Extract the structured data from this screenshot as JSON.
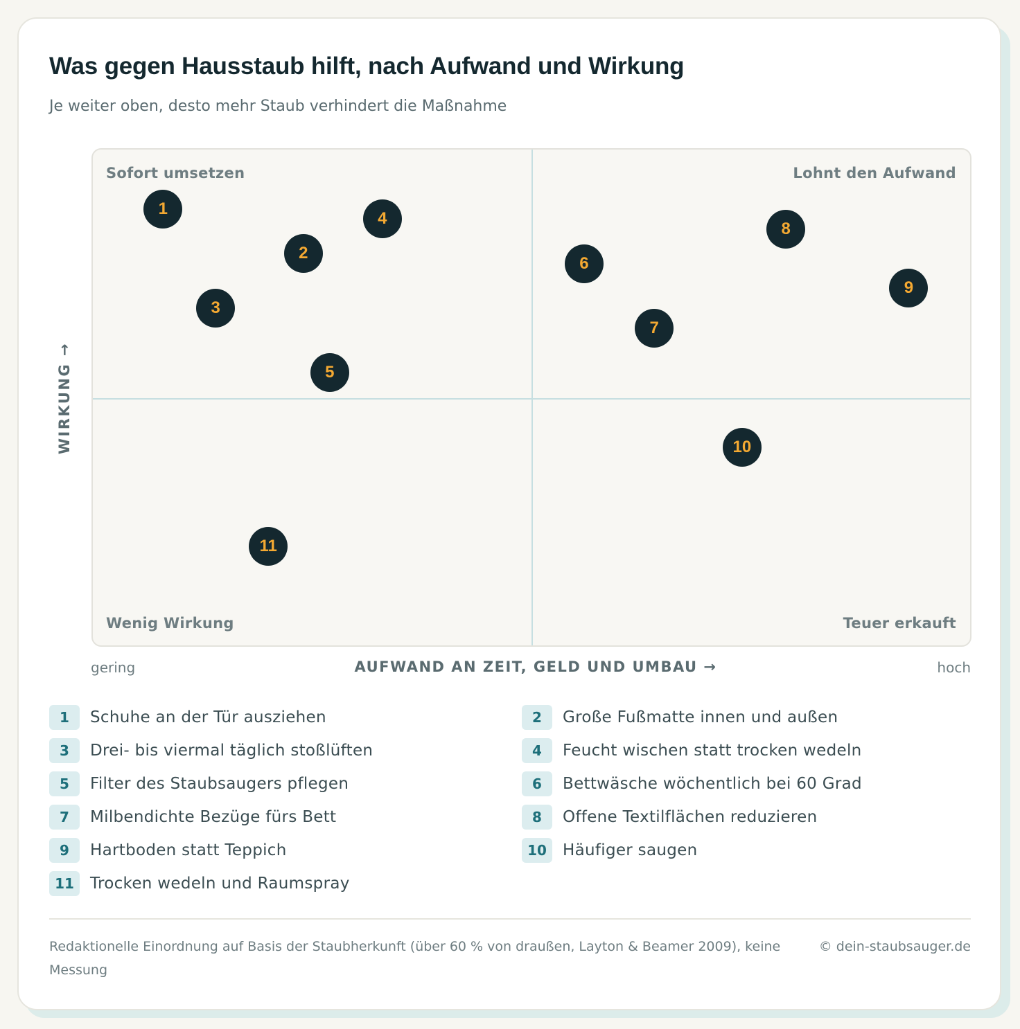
{
  "title": "Was gegen Hausstaub hilft, nach Aufwand und Wirkung",
  "subtitle": "Je weiter oben, desto mehr Staub verhindert die Maßnahme",
  "colors": {
    "marker_fill": "#14282f",
    "marker_text": "#f4a932",
    "badge_fill": "#dcedef",
    "badge_text": "#1d6f7a",
    "divider": "#c6dfe1"
  },
  "chart_data": {
    "type": "scatter",
    "title": "Was gegen Hausstaub hilft, nach Aufwand und Wirkung",
    "subtitle": "Je weiter oben, desto mehr Staub verhindert die Maßnahme",
    "xlabel": "AUFWAND AN ZEIT, GELD UND UMBAU →",
    "ylabel": "WIRKUNG →",
    "x_min_label": "gering",
    "x_max_label": "hoch",
    "xlim": [
      0,
      1
    ],
    "ylim": [
      0,
      1
    ],
    "quadrants": {
      "top_left": "Sofort umsetzen",
      "top_right": "Lohnt den Aufwand",
      "bottom_left": "Wenig Wirkung",
      "bottom_right": "Teuer erkauft"
    },
    "points": [
      {
        "id": "1",
        "x": 0.08,
        "y": 0.88,
        "label": "Schuhe an der Tür ausziehen"
      },
      {
        "id": "2",
        "x": 0.24,
        "y": 0.79,
        "label": "Große Fußmatte innen und außen"
      },
      {
        "id": "3",
        "x": 0.14,
        "y": 0.68,
        "label": "Drei- bis viermal täglich stoßlüften"
      },
      {
        "id": "4",
        "x": 0.33,
        "y": 0.86,
        "label": "Feucht wischen statt trocken wedeln"
      },
      {
        "id": "5",
        "x": 0.27,
        "y": 0.55,
        "label": "Filter des Staubsaugers pflegen"
      },
      {
        "id": "6",
        "x": 0.56,
        "y": 0.77,
        "label": "Bettwäsche wöchentlich bei 60 Grad"
      },
      {
        "id": "7",
        "x": 0.64,
        "y": 0.64,
        "label": "Milbendichte Bezüge fürs Bett"
      },
      {
        "id": "8",
        "x": 0.79,
        "y": 0.84,
        "label": "Offene Textilflächen reduzieren"
      },
      {
        "id": "9",
        "x": 0.93,
        "y": 0.72,
        "label": "Hartboden statt Teppich"
      },
      {
        "id": "10",
        "x": 0.74,
        "y": 0.4,
        "label": "Häufiger saugen"
      },
      {
        "id": "11",
        "x": 0.2,
        "y": 0.2,
        "label": "Trocken wedeln und Raumspray"
      }
    ]
  },
  "footer": {
    "note": "Redaktionelle Einordnung auf Basis der Staubherkunft (über 60 % von draußen, Layton & Beamer 2009), keine Messung",
    "credit": "© dein-staubsauger.de"
  }
}
